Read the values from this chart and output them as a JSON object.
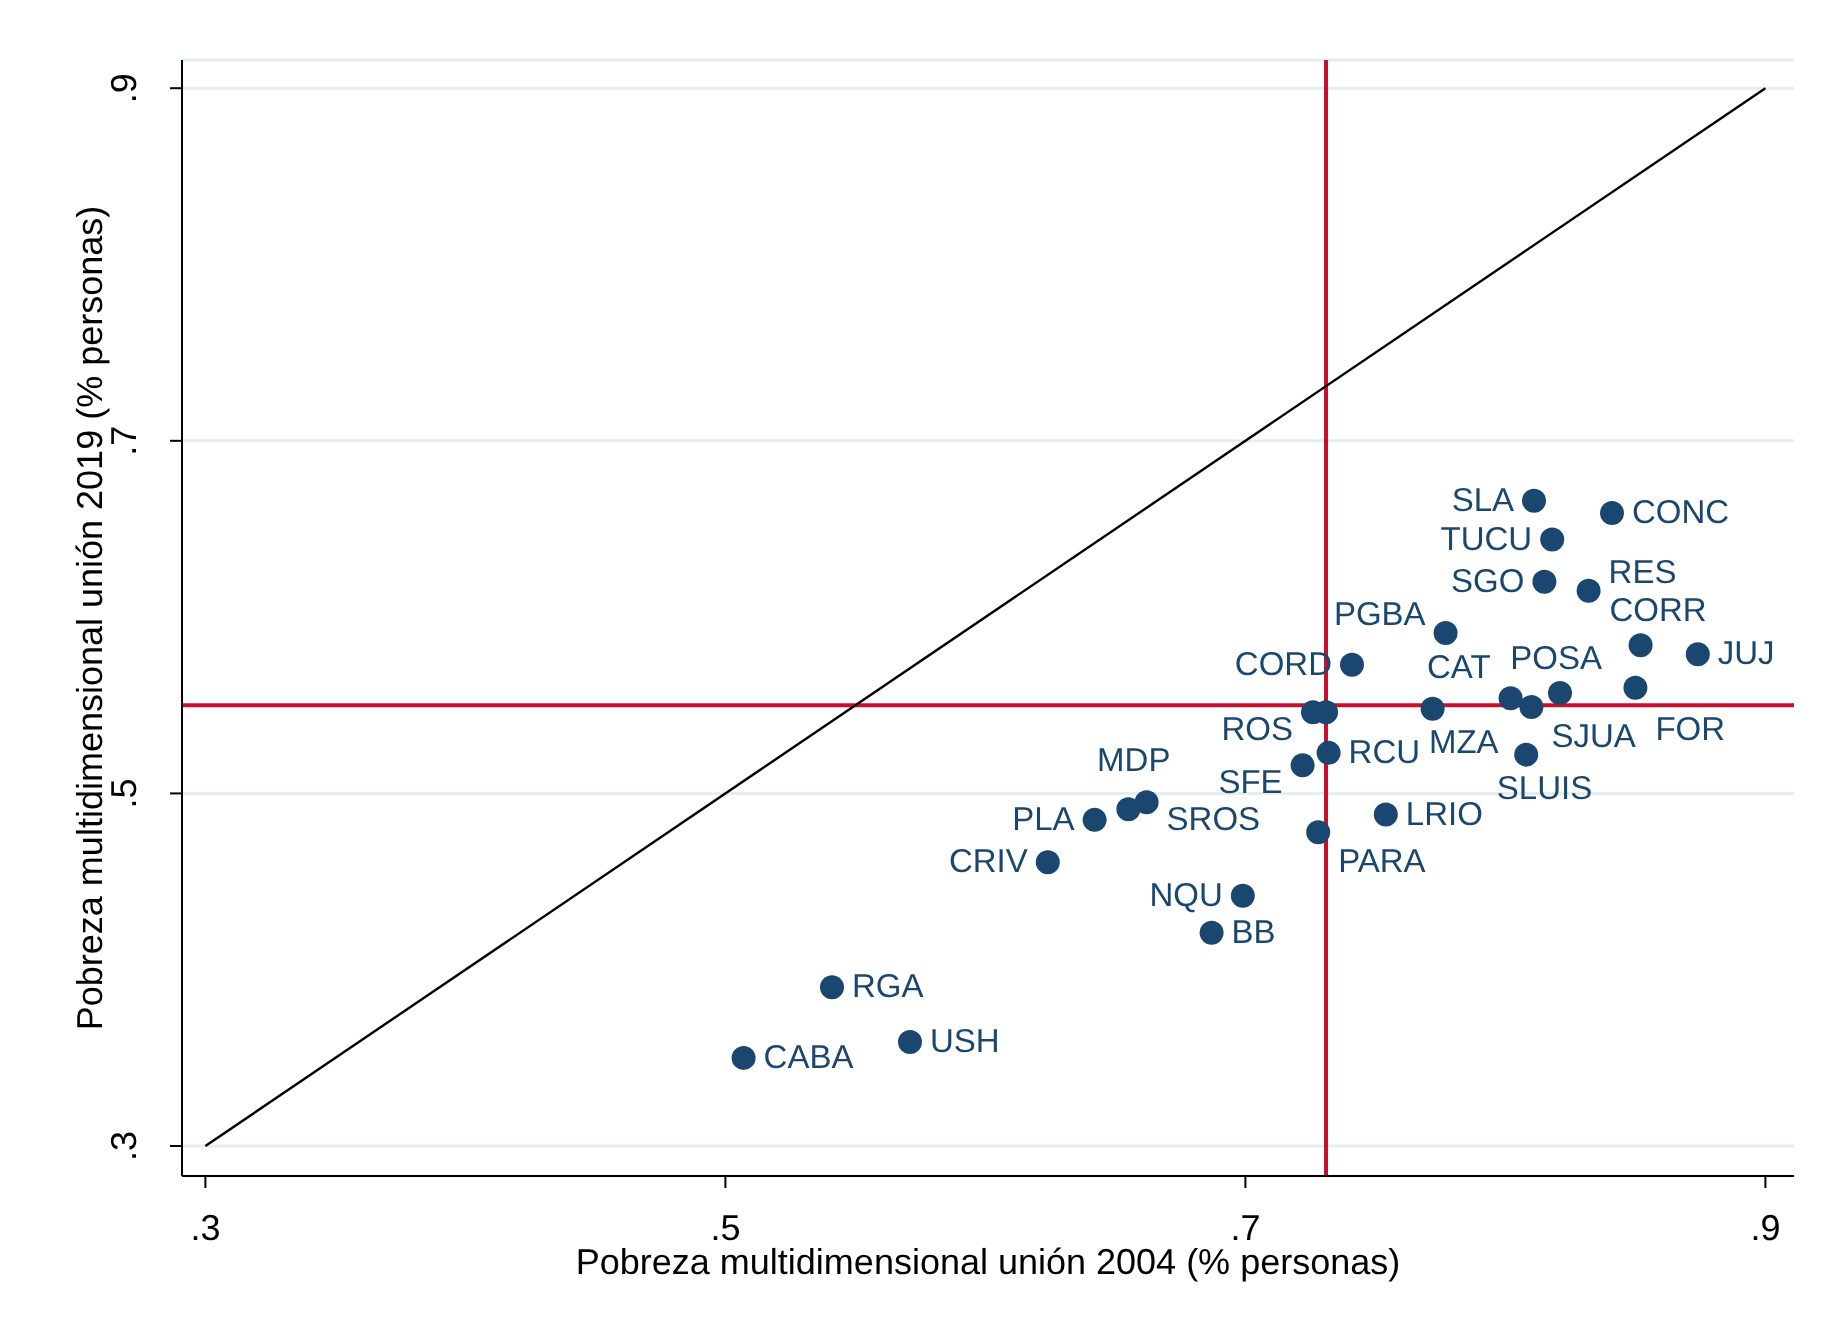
{
  "chart_data": {
    "type": "scatter",
    "xlabel": "Pobreza multidimensional unión 2004 (% personas)",
    "ylabel": "Pobreza multidimensional unión 2019 (% personas)",
    "xlim": [
      0.291,
      0.911
    ],
    "ylim": [
      0.283,
      0.916
    ],
    "xticks": [
      {
        "value": 0.3,
        "label": ".3"
      },
      {
        "value": 0.5,
        "label": ".5"
      },
      {
        "value": 0.7,
        "label": ".7"
      },
      {
        "value": 0.9,
        "label": ".9"
      }
    ],
    "yticks": [
      {
        "value": 0.3,
        "label": ".3"
      },
      {
        "value": 0.5,
        "label": ".5"
      },
      {
        "value": 0.7,
        "label": ".7"
      },
      {
        "value": 0.9,
        "label": ".9"
      }
    ],
    "grid": "y",
    "series": [
      {
        "type": "line",
        "color": "#000000",
        "x": [
          0.3,
          0.9
        ],
        "values": [
          0.3,
          0.9
        ],
        "marker": "none"
      },
      {
        "type": "scatter",
        "color": "#1a476f",
        "marker": "circle",
        "x": [
          0.507,
          0.571,
          0.541,
          0.624,
          0.642,
          0.655,
          0.662,
          0.687,
          0.699,
          0.728,
          0.754,
          0.722,
          0.732,
          0.726,
          0.731,
          0.772,
          0.802,
          0.81,
          0.821,
          0.85,
          0.808,
          0.741,
          0.777,
          0.852,
          0.874,
          0.815,
          0.832,
          0.818,
          0.841,
          0.811
        ],
        "values": [
          0.35,
          0.359,
          0.39,
          0.461,
          0.485,
          0.491,
          0.495,
          0.421,
          0.442,
          0.478,
          0.488,
          0.516,
          0.523,
          0.546,
          0.546,
          0.548,
          0.554,
          0.549,
          0.557,
          0.56,
          0.522,
          0.573,
          0.591,
          0.584,
          0.579,
          0.62,
          0.615,
          0.644,
          0.659,
          0.666
        ],
        "value_labels": [
          "CABA",
          "USH",
          "RGA",
          "CRIV",
          "PLA",
          "MDP",
          "SROS",
          "BB",
          "NQU",
          "PARA",
          "LRIO",
          "SFE",
          "RCU",
          "ROS",
          null,
          "MZA",
          "CAT",
          "SJUA",
          "POSA",
          "FOR",
          "SLUIS",
          "CORD",
          "PGBA",
          "CORR",
          "JUJ",
          "SGO",
          "RES",
          "TUCU",
          "CONC",
          "SLA"
        ]
      }
    ],
    "ref_lines": [
      {
        "axis": "x",
        "value": 0.731,
        "color": "#c8102e"
      },
      {
        "axis": "y",
        "value": 0.55,
        "color": "#c8102e"
      }
    ]
  }
}
